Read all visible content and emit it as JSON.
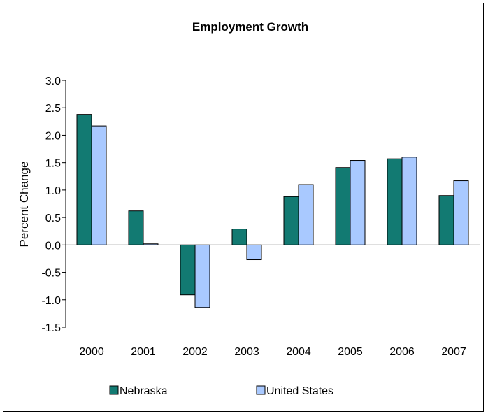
{
  "chart_data": {
    "type": "bar",
    "title": "Employment Growth",
    "xlabel": "",
    "ylabel": "Percent Change",
    "ylim": [
      -1.5,
      3.0
    ],
    "ytick_step": 0.5,
    "yticks": [
      "3.0",
      "2.5",
      "2.0",
      "1.5",
      "1.0",
      "0.5",
      "0.0",
      "-0.5",
      "-1.0",
      "-1.5"
    ],
    "categories": [
      "2000",
      "2001",
      "2002",
      "2003",
      "2004",
      "2005",
      "2006",
      "2007"
    ],
    "series": [
      {
        "name": "Nebraska",
        "color": "#127a72",
        "values": [
          2.38,
          0.62,
          -0.91,
          0.29,
          0.88,
          1.41,
          1.57,
          0.9
        ]
      },
      {
        "name": "United States",
        "color": "#a9c9ff",
        "values": [
          2.17,
          0.02,
          -1.14,
          -0.27,
          1.1,
          1.54,
          1.6,
          1.17
        ]
      }
    ],
    "grid": false,
    "legend_position": "bottom"
  }
}
